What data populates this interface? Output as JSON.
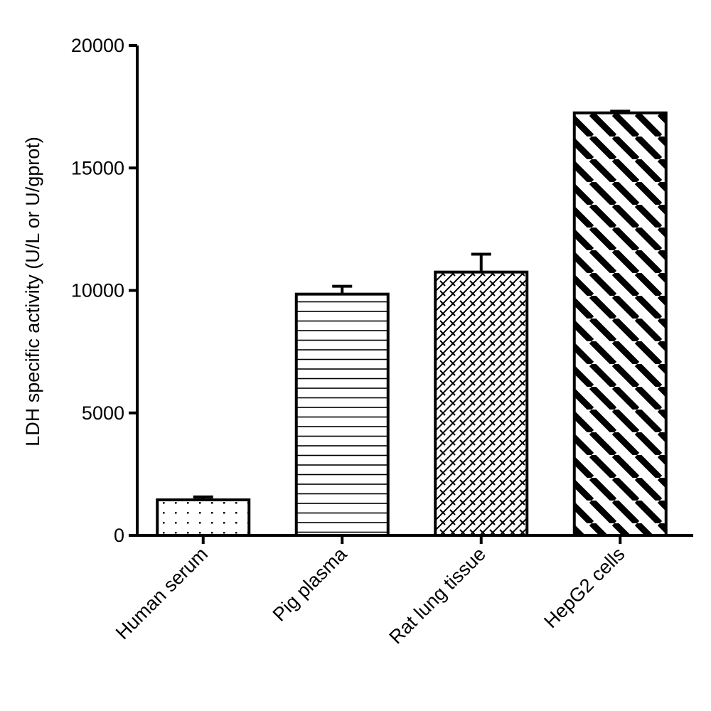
{
  "chart_data": {
    "type": "bar",
    "title": "",
    "xlabel": "",
    "ylabel": "LDH specific activity (U/L or U/gprot)",
    "ylim": [
      0,
      20000
    ],
    "yticks": [
      0,
      5000,
      10000,
      15000,
      20000
    ],
    "grid": false,
    "categories": [
      "Human serum",
      "Pig plasma",
      "Rat lung tissue",
      "HepG2 cells"
    ],
    "values": [
      1450,
      9850,
      10750,
      17250
    ],
    "error_upper": [
      120,
      320,
      730,
      70
    ],
    "fill_patterns": [
      "dots",
      "horizontal-lines",
      "crosshatch-brick",
      "diagonal-stripes"
    ],
    "colors": {
      "bar_outline": "#000000",
      "bar_fill": "#ffffff",
      "pattern": "#000000"
    }
  }
}
